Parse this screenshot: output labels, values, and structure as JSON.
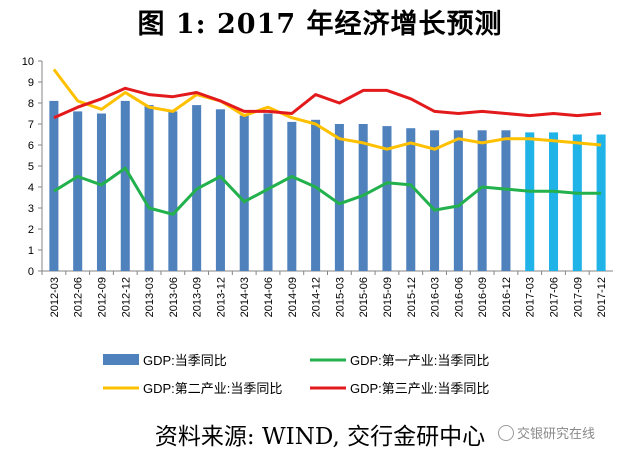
{
  "title": "图 1: 2017 年经济增长预测",
  "source": "资料来源: WIND, 交行金研中心",
  "watermark": "交银研究在线",
  "chart_data": {
    "type": "bar+line",
    "categories": [
      "2012-03",
      "2012-06",
      "2012-09",
      "2012-12",
      "2013-03",
      "2013-06",
      "2013-09",
      "2013-12",
      "2014-03",
      "2014-06",
      "2014-09",
      "2014-12",
      "2015-03",
      "2015-06",
      "2015-09",
      "2015-12",
      "2016-03",
      "2016-06",
      "2016-09",
      "2016-12",
      "2017-03",
      "2017-06",
      "2017-09",
      "2017-12"
    ],
    "ylim": [
      0,
      10
    ],
    "yticks": [
      0,
      1,
      2,
      3,
      4,
      5,
      6,
      7,
      8,
      9,
      10
    ],
    "forecast_start_index": 20,
    "colors": {
      "bar": "#4f81bd",
      "bar_forecast": "#1fb3e8",
      "primary": "#22b14c",
      "secondary": "#ffc000",
      "tertiary": "#e31a1c"
    },
    "series": [
      {
        "name": "GDP:当季同比",
        "type": "bar",
        "values": [
          8.1,
          7.6,
          7.5,
          8.1,
          7.9,
          7.6,
          7.9,
          7.7,
          7.4,
          7.5,
          7.1,
          7.2,
          7.0,
          7.0,
          6.9,
          6.8,
          6.7,
          6.7,
          6.7,
          6.7,
          6.6,
          6.6,
          6.5,
          6.5
        ]
      },
      {
        "name": "GDP:第一产业:当季同比",
        "type": "line",
        "values": [
          3.8,
          4.5,
          4.1,
          4.9,
          3.0,
          2.7,
          3.9,
          4.5,
          3.3,
          3.9,
          4.5,
          4.0,
          3.2,
          3.6,
          4.2,
          4.1,
          2.9,
          3.1,
          4.0,
          3.9,
          3.8,
          3.8,
          3.7,
          3.7
        ]
      },
      {
        "name": "GDP:第二产业:当季同比",
        "type": "line",
        "values": [
          9.6,
          8.1,
          7.7,
          8.5,
          7.8,
          7.6,
          8.4,
          8.1,
          7.4,
          7.8,
          7.3,
          7.0,
          6.3,
          6.1,
          5.8,
          6.1,
          5.8,
          6.3,
          6.1,
          6.3,
          6.3,
          6.2,
          6.1,
          6.0
        ]
      },
      {
        "name": "GDP:第三产业:当季同比",
        "type": "line",
        "values": [
          7.3,
          7.8,
          8.2,
          8.7,
          8.4,
          8.3,
          8.5,
          8.1,
          7.6,
          7.6,
          7.5,
          8.4,
          8.0,
          8.6,
          8.6,
          8.2,
          7.6,
          7.5,
          7.6,
          7.5,
          7.4,
          7.5,
          7.4,
          7.5
        ]
      }
    ],
    "legend_placement": "bottom",
    "grid": false
  }
}
